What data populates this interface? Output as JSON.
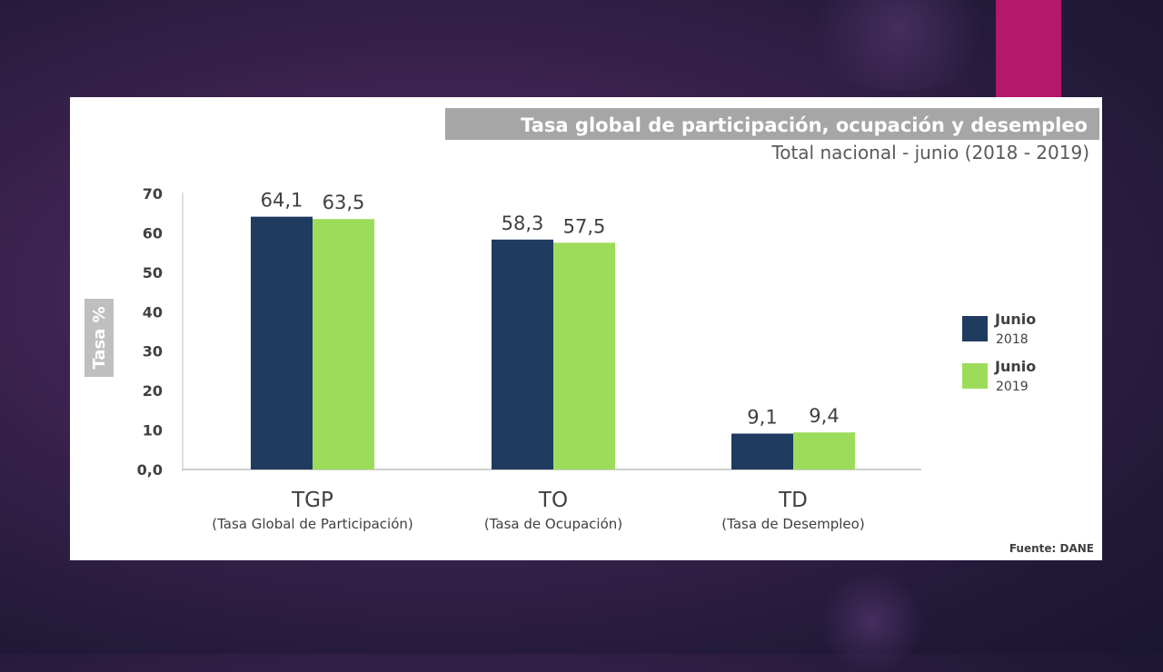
{
  "colors": {
    "accent_bar": "#b5176a",
    "series_2018": "#1f3b60",
    "series_2019": "#9ddc5a",
    "title_band": "#a6a6a6"
  },
  "chart_data": {
    "type": "bar",
    "title": "Tasa global de participación, ocupación y desempleo",
    "subtitle": "Total nacional - junio (2018 - 2019)",
    "ylabel": "Tasa %",
    "ylim": [
      0,
      70
    ],
    "yticks": [
      0,
      10,
      20,
      30,
      40,
      50,
      60,
      70
    ],
    "ytick_labels": [
      "0,0",
      "10",
      "20",
      "30",
      "40",
      "50",
      "60",
      "70"
    ],
    "grid": false,
    "legend_position": "right",
    "categories": [
      "TGP",
      "TO",
      "TD"
    ],
    "category_descriptions": [
      "(Tasa Global de Participación)",
      "(Tasa de Ocupación)",
      "(Tasa de Desempleo)"
    ],
    "series": [
      {
        "name": "Junio",
        "year": "2018",
        "values": [
          64.1,
          58.3,
          9.1
        ],
        "labels": [
          "64,1",
          "58,3",
          "9,1"
        ]
      },
      {
        "name": "Junio",
        "year": "2019",
        "values": [
          63.5,
          57.5,
          9.4
        ],
        "labels": [
          "63,5",
          "57,5",
          "9,4"
        ]
      }
    ],
    "source": "Fuente: DANE"
  }
}
